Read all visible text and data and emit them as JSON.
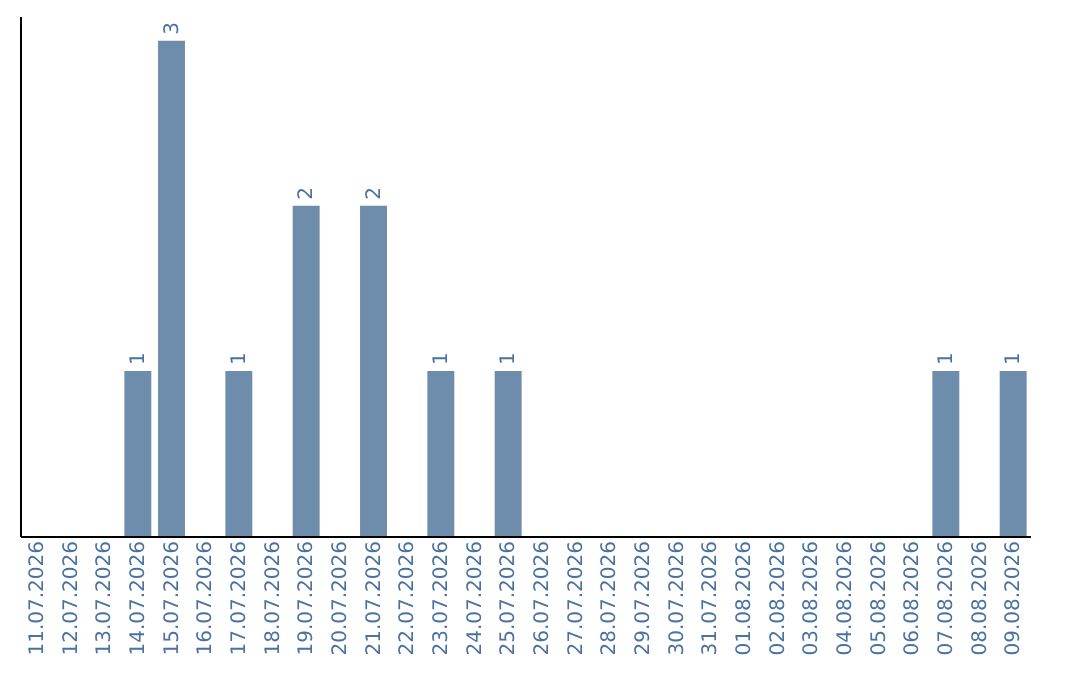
{
  "chart_data": {
    "type": "bar",
    "categories": [
      "11.07.2026",
      "12.07.2026",
      "13.07.2026",
      "14.07.2026",
      "15.07.2026",
      "16.07.2026",
      "17.07.2026",
      "18.07.2026",
      "19.07.2026",
      "20.07.2026",
      "21.07.2026",
      "22.07.2026",
      "23.07.2026",
      "24.07.2026",
      "25.07.2026",
      "26.07.2026",
      "27.07.2026",
      "28.07.2026",
      "29.07.2026",
      "30.07.2026",
      "31.07.2026",
      "01.08.2026",
      "02.08.2026",
      "03.08.2026",
      "04.08.2026",
      "05.08.2026",
      "06.08.2026",
      "07.08.2026",
      "08.08.2026",
      "09.08.2026"
    ],
    "values": [
      0,
      0,
      0,
      1,
      3,
      0,
      1,
      0,
      2,
      0,
      2,
      0,
      1,
      0,
      1,
      0,
      0,
      0,
      0,
      0,
      0,
      0,
      0,
      0,
      0,
      0,
      0,
      1,
      0,
      1
    ],
    "value_labels": [
      null,
      null,
      null,
      "1",
      "3",
      null,
      "1",
      null,
      "2",
      null,
      "2",
      null,
      "1",
      null,
      "1",
      null,
      null,
      null,
      null,
      null,
      null,
      null,
      null,
      null,
      null,
      null,
      null,
      "1",
      null,
      "1"
    ],
    "color": "#6e8cab",
    "ylim": [
      0,
      3.15
    ],
    "tick_labels": "x"
  }
}
